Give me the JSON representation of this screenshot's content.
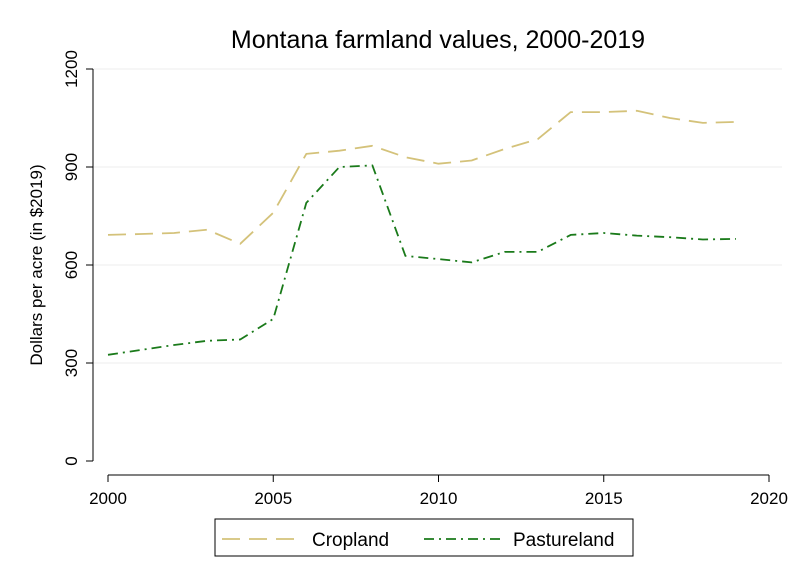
{
  "chart_data": {
    "type": "line",
    "title": "Montana farmland values, 2000-2019",
    "xlabel": "",
    "ylabel": "Dollars per acre (in $2019)",
    "xlim": [
      2000,
      2020
    ],
    "ylim": [
      0,
      1200
    ],
    "x_ticks": [
      2000,
      2005,
      2010,
      2015,
      2020
    ],
    "y_ticks": [
      0,
      300,
      600,
      900,
      1200
    ],
    "grid": "horizontal",
    "legend_position": "bottom",
    "x": [
      2000,
      2001,
      2002,
      2003,
      2004,
      2005,
      2006,
      2007,
      2008,
      2009,
      2010,
      2011,
      2012,
      2013,
      2014,
      2015,
      2016,
      2017,
      2018,
      2019
    ],
    "series": [
      {
        "name": "Cropland",
        "color": "#d4c27a",
        "dash": "long-dash",
        "values": [
          692,
          695,
          698,
          708,
          665,
          760,
          940,
          950,
          965,
          930,
          910,
          920,
          955,
          985,
          1068,
          1068,
          1072,
          1050,
          1035,
          1038
        ]
      },
      {
        "name": "Pastureland",
        "color": "#1a7a1a",
        "dash": "dash-dot",
        "values": [
          325,
          340,
          355,
          368,
          372,
          435,
          790,
          900,
          905,
          628,
          618,
          608,
          640,
          640,
          692,
          698,
          690,
          685,
          678,
          680
        ]
      }
    ]
  }
}
